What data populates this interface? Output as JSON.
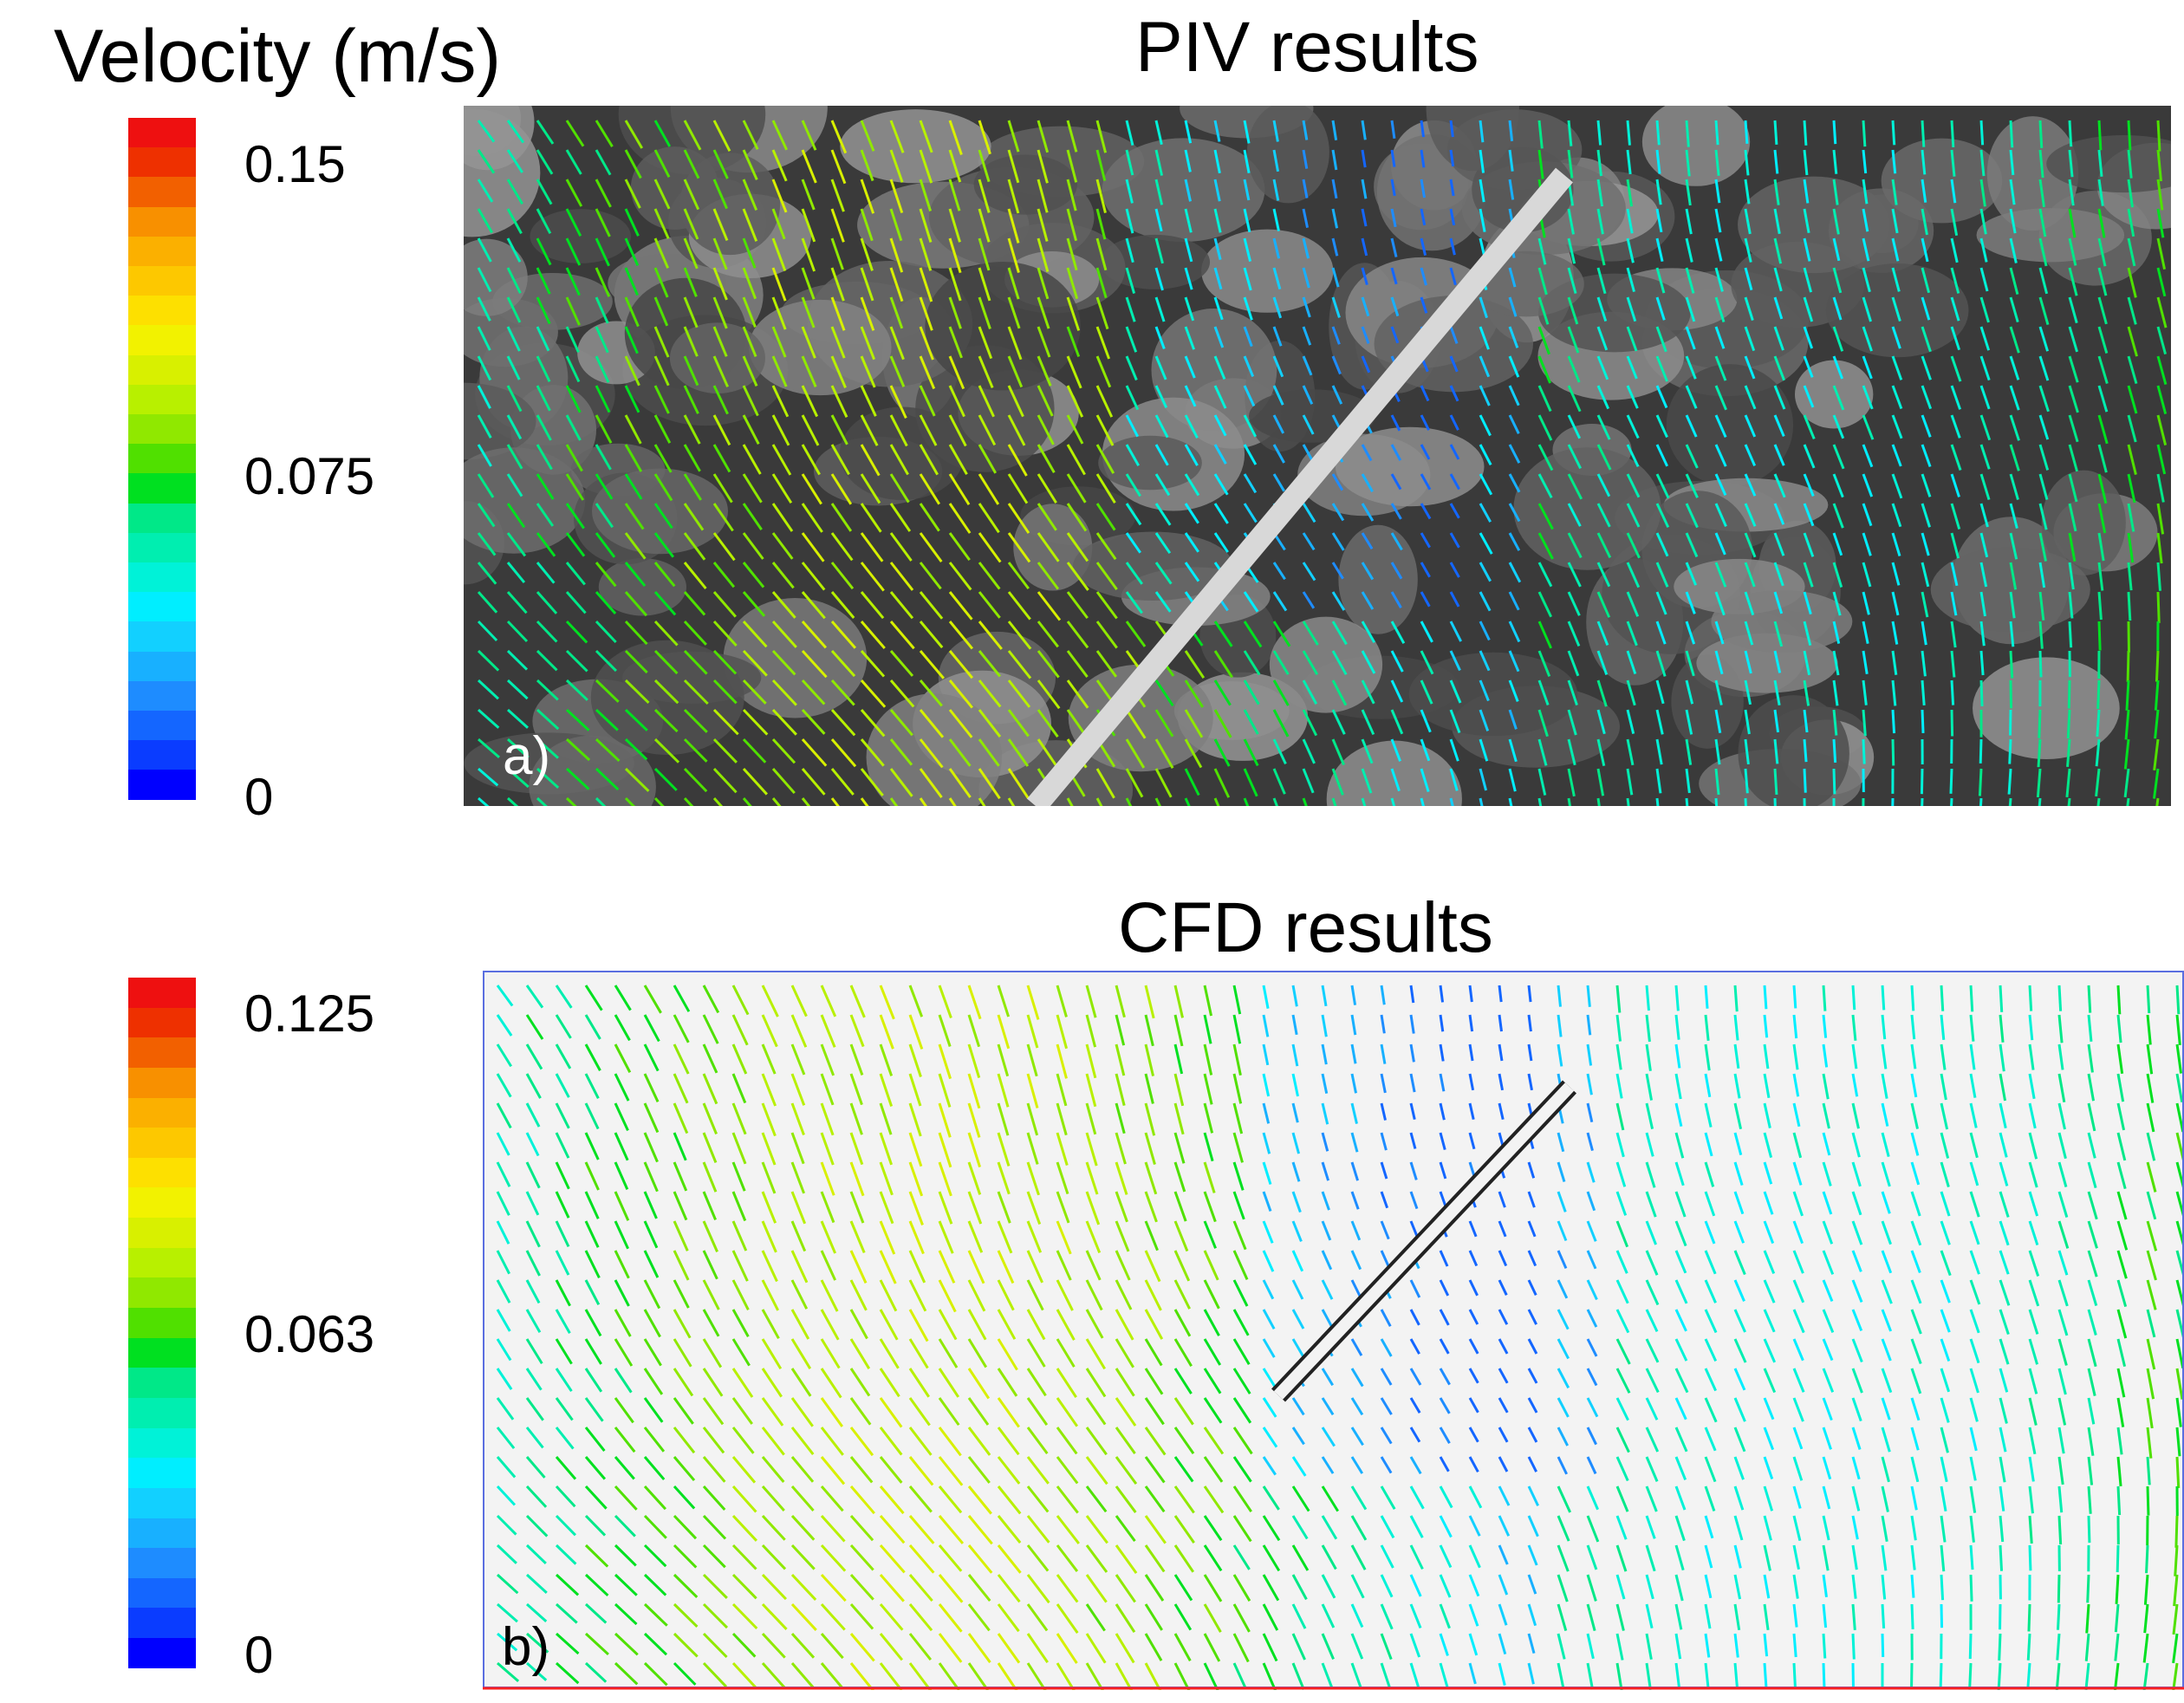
{
  "legend": {
    "title": "Velocity (m/s)",
    "piv_ticks": [
      "0.15",
      "0.075",
      "0"
    ],
    "cfd_ticks": [
      "0.125",
      "0.063",
      "0"
    ],
    "colors": [
      "#0000ff",
      "#0a3cff",
      "#1466ff",
      "#1e8cff",
      "#18b0ff",
      "#12d0ff",
      "#00eeff",
      "#00f2d8",
      "#00eeb0",
      "#00e888",
      "#00e020",
      "#50e000",
      "#90e800",
      "#b8f000",
      "#d8f000",
      "#f2f200",
      "#fde000",
      "#fdc800",
      "#fbb000",
      "#f89000",
      "#f26000",
      "#ee3000",
      "#ee1010"
    ]
  },
  "panels": {
    "piv": {
      "title": "PIV results",
      "label": "a)"
    },
    "cfd": {
      "title": "CFD results",
      "label": "b)"
    }
  }
}
